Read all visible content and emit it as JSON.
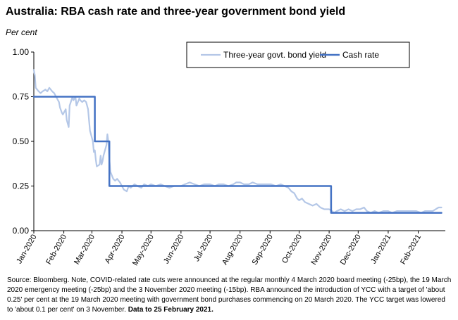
{
  "title": "Australia: RBA cash rate and three-year government bond yield",
  "unit_label": "Per cent",
  "source_note": "Source: Bloomberg.  Note, COVID-related rate cuts were announced at the regular monthly 4 March 2020 board meeting (-25bp), the 19 March 2020 emergency meeting (-25bp) and the 3 November 2020 meeting (-15bp). RBA announced the introduction of YCC with a target of 'about 0.25' per cent at the 19 March 2020 meeting with government bond purchases commencing on 20 March 2020.  The YCC target was lowered to 'about 0.1 per cent' on 3 November.",
  "source_bold": "Data to 25 February 2021.",
  "chart_data": {
    "type": "line",
    "title": "Australia: RBA cash rate and three-year government bond yield",
    "ylabel": "Per cent",
    "ylim": [
      0,
      1.0
    ],
    "yticks": [
      "0.00",
      "0.25",
      "0.50",
      "0.75",
      "1.00"
    ],
    "ytick_values": [
      0,
      0.25,
      0.5,
      0.75,
      1.0
    ],
    "xlim": [
      "2020-01-01",
      "2021-03-01"
    ],
    "xticks": [
      "Jan-2020",
      "Feb-2020",
      "Mar-2020",
      "Apr-2020",
      "May-2020",
      "Jun-2020",
      "Jul-2020",
      "Aug-2020",
      "Sep-2020",
      "Oct-2020",
      "Nov-2020",
      "Dec-2020",
      "Jan-2021",
      "Feb-2021"
    ],
    "xtick_dates": [
      "2020-01-01",
      "2020-02-01",
      "2020-03-01",
      "2020-04-01",
      "2020-05-01",
      "2020-06-01",
      "2020-07-01",
      "2020-08-01",
      "2020-09-01",
      "2020-10-01",
      "2020-11-01",
      "2020-12-01",
      "2021-01-01",
      "2021-02-01"
    ],
    "grid": false,
    "legend_position": "top-right",
    "series": [
      {
        "name": "Three-year govt. bond yield",
        "color": "#b4c7e7",
        "points": [
          [
            "2020-01-01",
            0.9
          ],
          [
            "2020-01-02",
            0.87
          ],
          [
            "2020-01-03",
            0.8
          ],
          [
            "2020-01-06",
            0.78
          ],
          [
            "2020-01-08",
            0.77
          ],
          [
            "2020-01-10",
            0.78
          ],
          [
            "2020-01-13",
            0.79
          ],
          [
            "2020-01-15",
            0.78
          ],
          [
            "2020-01-17",
            0.8
          ],
          [
            "2020-01-20",
            0.78
          ],
          [
            "2020-01-22",
            0.77
          ],
          [
            "2020-01-24",
            0.75
          ],
          [
            "2020-01-27",
            0.72
          ],
          [
            "2020-01-28",
            0.69
          ],
          [
            "2020-01-30",
            0.66
          ],
          [
            "2020-01-31",
            0.65
          ],
          [
            "2020-02-03",
            0.68
          ],
          [
            "2020-02-04",
            0.62
          ],
          [
            "2020-02-05",
            0.6
          ],
          [
            "2020-02-06",
            0.58
          ],
          [
            "2020-02-07",
            0.7
          ],
          [
            "2020-02-10",
            0.75
          ],
          [
            "2020-02-11",
            0.73
          ],
          [
            "2020-02-13",
            0.75
          ],
          [
            "2020-02-14",
            0.7
          ],
          [
            "2020-02-17",
            0.74
          ],
          [
            "2020-02-18",
            0.73
          ],
          [
            "2020-02-20",
            0.72
          ],
          [
            "2020-02-22",
            0.73
          ],
          [
            "2020-02-24",
            0.72
          ],
          [
            "2020-02-26",
            0.68
          ],
          [
            "2020-02-27",
            0.62
          ],
          [
            "2020-02-28",
            0.56
          ],
          [
            "2020-03-02",
            0.5
          ],
          [
            "2020-03-03",
            0.44
          ],
          [
            "2020-03-04",
            0.45
          ],
          [
            "2020-03-05",
            0.4
          ],
          [
            "2020-03-06",
            0.36
          ],
          [
            "2020-03-09",
            0.37
          ],
          [
            "2020-03-10",
            0.42
          ],
          [
            "2020-03-11",
            0.37
          ],
          [
            "2020-03-12",
            0.39
          ],
          [
            "2020-03-13",
            0.42
          ],
          [
            "2020-03-16",
            0.48
          ],
          [
            "2020-03-17",
            0.54
          ],
          [
            "2020-03-18",
            0.5
          ],
          [
            "2020-03-19",
            0.4
          ],
          [
            "2020-03-20",
            0.33
          ],
          [
            "2020-03-23",
            0.29
          ],
          [
            "2020-03-25",
            0.28
          ],
          [
            "2020-03-27",
            0.29
          ],
          [
            "2020-03-30",
            0.27
          ],
          [
            "2020-04-01",
            0.25
          ],
          [
            "2020-04-03",
            0.23
          ],
          [
            "2020-04-06",
            0.22
          ],
          [
            "2020-04-08",
            0.25
          ],
          [
            "2020-04-10",
            0.24
          ],
          [
            "2020-04-14",
            0.26
          ],
          [
            "2020-04-17",
            0.25
          ],
          [
            "2020-04-21",
            0.24
          ],
          [
            "2020-04-24",
            0.26
          ],
          [
            "2020-04-28",
            0.25
          ],
          [
            "2020-05-01",
            0.26
          ],
          [
            "2020-05-06",
            0.25
          ],
          [
            "2020-05-11",
            0.26
          ],
          [
            "2020-05-15",
            0.25
          ],
          [
            "2020-05-20",
            0.24
          ],
          [
            "2020-05-25",
            0.25
          ],
          [
            "2020-06-01",
            0.25
          ],
          [
            "2020-06-05",
            0.26
          ],
          [
            "2020-06-10",
            0.27
          ],
          [
            "2020-06-15",
            0.26
          ],
          [
            "2020-06-20",
            0.25
          ],
          [
            "2020-06-25",
            0.26
          ],
          [
            "2020-07-01",
            0.26
          ],
          [
            "2020-07-06",
            0.25
          ],
          [
            "2020-07-10",
            0.26
          ],
          [
            "2020-07-15",
            0.26
          ],
          [
            "2020-07-20",
            0.25
          ],
          [
            "2020-07-25",
            0.26
          ],
          [
            "2020-07-28",
            0.27
          ],
          [
            "2020-08-01",
            0.27
          ],
          [
            "2020-08-05",
            0.26
          ],
          [
            "2020-08-10",
            0.26
          ],
          [
            "2020-08-14",
            0.27
          ],
          [
            "2020-08-19",
            0.26
          ],
          [
            "2020-08-24",
            0.26
          ],
          [
            "2020-08-28",
            0.26
          ],
          [
            "2020-09-02",
            0.26
          ],
          [
            "2020-09-07",
            0.25
          ],
          [
            "2020-09-12",
            0.26
          ],
          [
            "2020-09-16",
            0.25
          ],
          [
            "2020-09-20",
            0.24
          ],
          [
            "2020-09-23",
            0.22
          ],
          [
            "2020-09-26",
            0.21
          ],
          [
            "2020-09-29",
            0.18
          ],
          [
            "2020-10-01",
            0.17
          ],
          [
            "2020-10-04",
            0.18
          ],
          [
            "2020-10-07",
            0.16
          ],
          [
            "2020-10-11",
            0.15
          ],
          [
            "2020-10-15",
            0.14
          ],
          [
            "2020-10-19",
            0.15
          ],
          [
            "2020-10-23",
            0.13
          ],
          [
            "2020-10-27",
            0.12
          ],
          [
            "2020-11-01",
            0.12
          ],
          [
            "2020-11-04",
            0.11
          ],
          [
            "2020-11-06",
            0.1
          ],
          [
            "2020-11-09",
            0.11
          ],
          [
            "2020-11-13",
            0.12
          ],
          [
            "2020-11-17",
            0.11
          ],
          [
            "2020-11-21",
            0.12
          ],
          [
            "2020-11-25",
            0.11
          ],
          [
            "2020-11-29",
            0.12
          ],
          [
            "2020-12-03",
            0.12
          ],
          [
            "2020-12-07",
            0.13
          ],
          [
            "2020-12-10",
            0.11
          ],
          [
            "2020-12-14",
            0.1
          ],
          [
            "2020-12-18",
            0.11
          ],
          [
            "2020-12-22",
            0.1
          ],
          [
            "2020-12-27",
            0.11
          ],
          [
            "2021-01-01",
            0.11
          ],
          [
            "2021-01-05",
            0.1
          ],
          [
            "2021-01-10",
            0.11
          ],
          [
            "2021-01-15",
            0.11
          ],
          [
            "2021-01-20",
            0.11
          ],
          [
            "2021-01-25",
            0.11
          ],
          [
            "2021-01-30",
            0.11
          ],
          [
            "2021-02-04",
            0.1
          ],
          [
            "2021-02-08",
            0.11
          ],
          [
            "2021-02-12",
            0.11
          ],
          [
            "2021-02-16",
            0.11
          ],
          [
            "2021-02-19",
            0.12
          ],
          [
            "2021-02-22",
            0.13
          ],
          [
            "2021-02-25",
            0.13
          ]
        ]
      },
      {
        "name": "Cash rate",
        "color": "#4472c4",
        "step": true,
        "points": [
          [
            "2020-01-01",
            0.75
          ],
          [
            "2020-03-04",
            0.75
          ],
          [
            "2020-03-04",
            0.5
          ],
          [
            "2020-03-19",
            0.5
          ],
          [
            "2020-03-19",
            0.25
          ],
          [
            "2020-11-03",
            0.25
          ],
          [
            "2020-11-03",
            0.1
          ],
          [
            "2021-02-25",
            0.1
          ]
        ]
      }
    ]
  }
}
